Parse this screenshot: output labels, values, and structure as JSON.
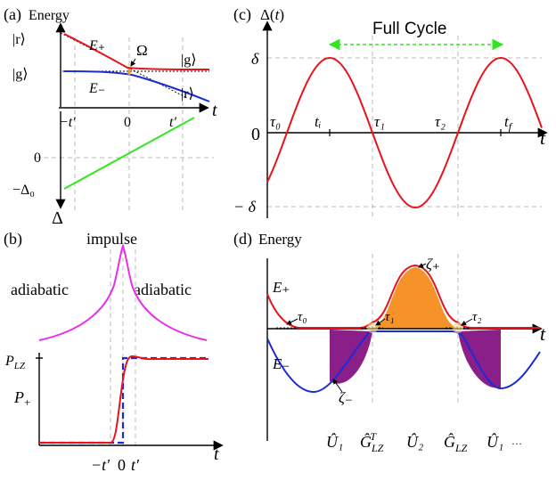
{
  "panels": {
    "a": {
      "letter": "(a)",
      "ylabel": "Energy",
      "xlabel": "t",
      "ylabel_bottom": "Δ",
      "levels": {
        "r_left": "|r⟩",
        "g_left": "|g⟩",
        "g_right": "|g⟩",
        "r_right": "|r⟩"
      },
      "curves": {
        "upper": "E₊",
        "lower": "E₋",
        "gap": "Ω"
      },
      "ticks": {
        "neg": "−t′",
        "zero": "0",
        "pos": "t′",
        "y_zero": "0",
        "y_neg": "−Δ₀"
      }
    },
    "b": {
      "letter": "(b)",
      "center_label": "impulse",
      "left_label": "adiabatic",
      "right_label": "adiabatic",
      "y_tick": "P_LZ",
      "y_label": "P₊",
      "xlabel": "t",
      "ticks": {
        "neg": "−t′",
        "zero": "0",
        "pos": "t′"
      }
    },
    "c": {
      "letter": "(c)",
      "ylabel": "Δ(t)",
      "xlabel": "t",
      "cycle_label": "Full Cycle",
      "y_ticks": {
        "pos": "δ",
        "zero": "0",
        "neg": "− δ"
      },
      "points": [
        "τ₀",
        "tᵢ",
        "τ₁",
        "τ₂",
        "t_f"
      ]
    },
    "d": {
      "letter": "(d)",
      "ylabel": "Energy",
      "xlabel": "t",
      "curves": {
        "upper": "E₊",
        "lower": "E₋",
        "zeta_plus": "ζ₊",
        "zeta_minus": "ζ₋"
      },
      "points": [
        "τ₀",
        "τ₁",
        "τ₂"
      ],
      "operators": [
        "Û₁",
        "Ĝᵀ_LZ",
        "Û₂",
        "Ĝ_LZ",
        "Û₁",
        "···"
      ]
    }
  },
  "colors": {
    "red": "#e8141c",
    "blue": "#1c2bd6",
    "green": "#33e51f",
    "magenta": "#e830e8",
    "orange": "#f5922a",
    "purple": "#8a1f8a",
    "grid": "#b8b8b8"
  }
}
